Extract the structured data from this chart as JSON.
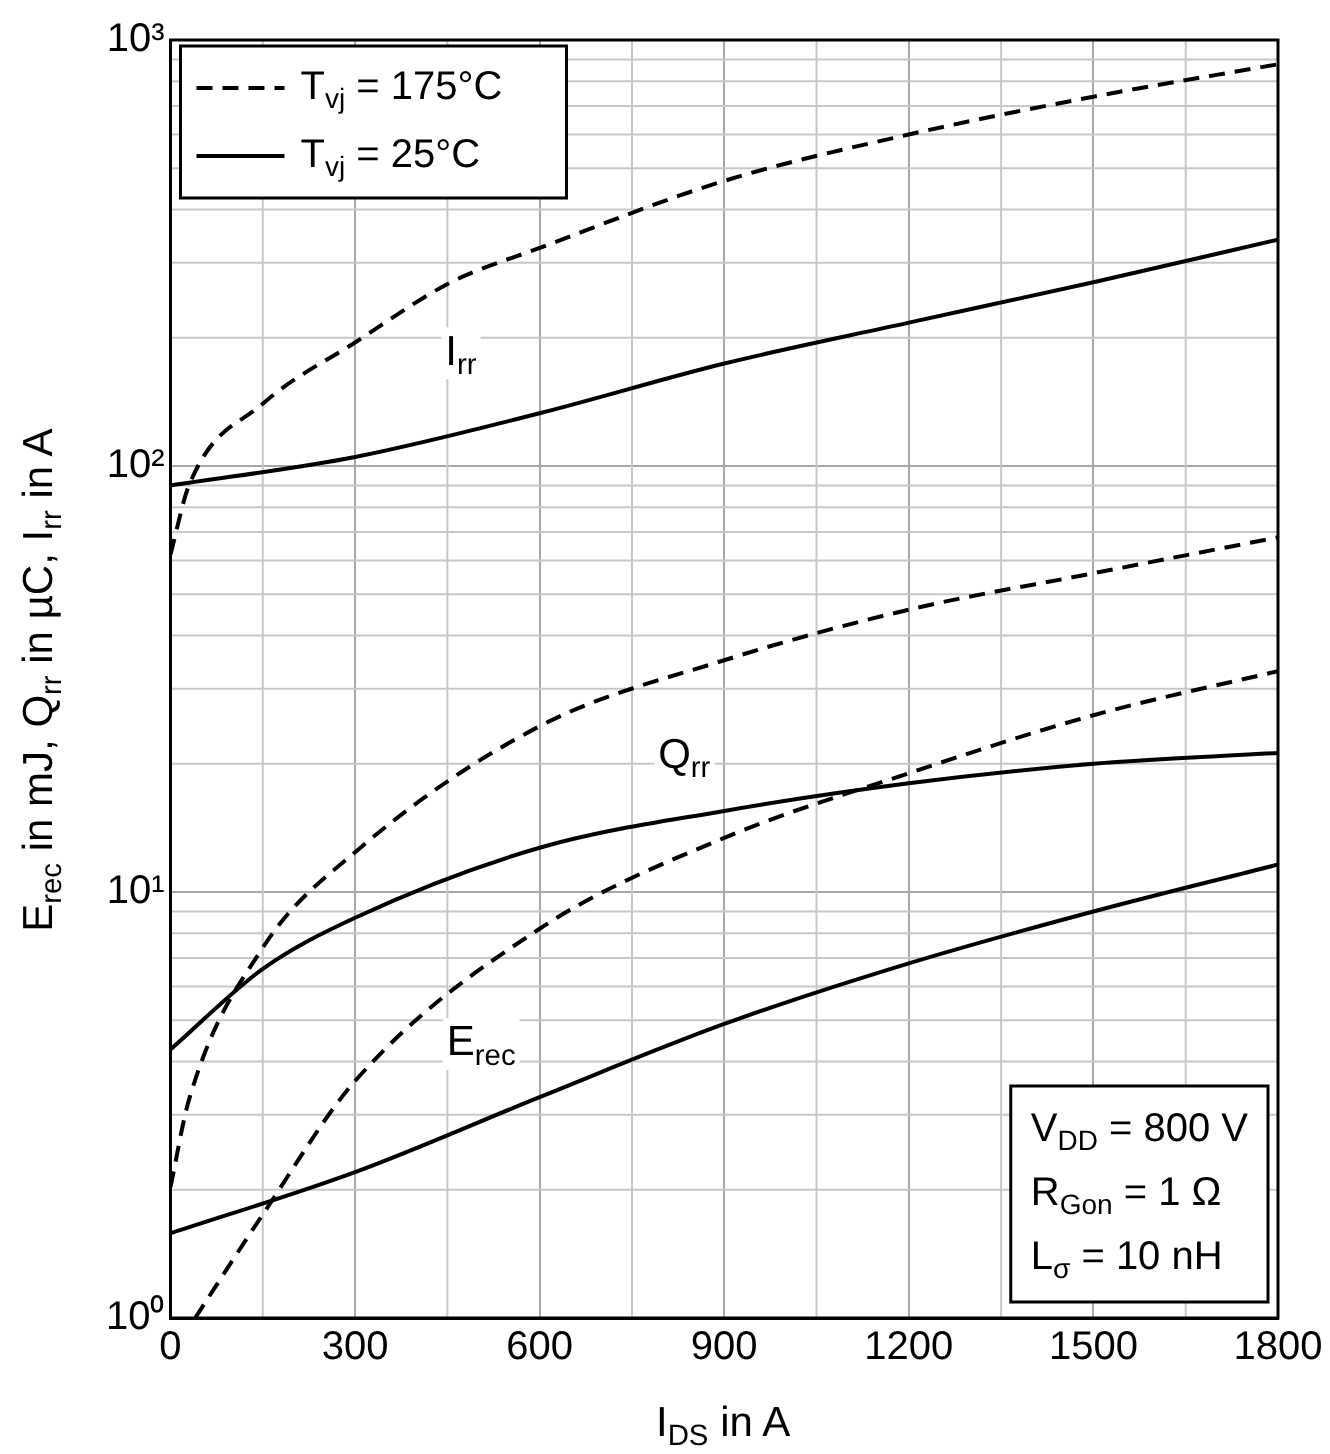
{
  "chart_data": {
    "type": "line",
    "xlabel": "I$_{DS}$ in A",
    "ylabel": "E$_{rec}$ in mJ, Q$_{rr}$ in µC, I$_{rr}$ in A",
    "series": [
      {
        "name": "T$_{vj}$ = 175°C",
        "color": "#000000",
        "line_style": "dashed",
        "x": [
          0,
          30,
          150,
          300,
          456,
          600,
          900,
          1200,
          1500,
          1800
        ],
        "values": [
          62,
          90,
          140,
          195,
          270,
          325,
          467,
          600,
          736,
          877
        ]
      },
      {
        "name": "T$_{vj}$ = 25°C",
        "color": "#000000",
        "line_style": "solid",
        "x": [
          0,
          300,
          600,
          900,
          1200,
          1500,
          1800
        ],
        "values": [
          90,
          105,
          133,
          174,
          217,
          270,
          340
        ]
      },
      {
        "color": "#000000",
        "line_style": "dashed",
        "x": [
          0,
          30,
          150,
          300,
          600,
          900,
          1200,
          1500,
          1800
        ],
        "values": [
          2.03,
          3.25,
          7.4,
          12.4,
          24.5,
          35,
          46,
          56,
          68
        ]
      },
      {
        "color": "#000000",
        "line_style": "solid",
        "x": [
          0,
          150,
          300,
          600,
          900,
          1200,
          1500,
          1800
        ],
        "values": [
          4.27,
          6.6,
          8.7,
          12.7,
          15.5,
          18,
          20,
          21.2
        ]
      },
      {
        "color": "#000000",
        "line_style": "dashed",
        "x": [
          40,
          150,
          300,
          600,
          900,
          1200,
          1500,
          1800
        ],
        "values": [
          1.0,
          1.75,
          3.6,
          8.2,
          13.4,
          19,
          26,
          33
        ]
      },
      {
        "color": "#000000",
        "line_style": "solid",
        "x": [
          0,
          300,
          600,
          900,
          1200,
          1500,
          1800
        ],
        "values": [
          1.58,
          2.2,
          3.3,
          4.9,
          6.8,
          9.0,
          11.6
        ]
      }
    ],
    "log": "y",
    "grid": true,
    "legend": "top left",
    "marker": "none",
    "xlim": [
      0,
      1800
    ],
    "xticks": [
      0,
      300,
      600,
      900,
      1200,
      1500,
      1800
    ],
    "ylim": [
      1,
      1000
    ],
    "yticks": [
      {
        "value": 1,
        "label": "10⁰"
      },
      {
        "value": 10,
        "label": "10¹"
      },
      {
        "value": 100,
        "label": "10²"
      },
      {
        "value": 1000,
        "label": "10³"
      }
    ],
    "annotations": [
      {
        "text": "I$_{rr}$",
        "x": 472,
        "y": 184
      },
      {
        "text": "Q$_{rr}$",
        "x": 835,
        "y": 20.8
      },
      {
        "text": "E$_{rec}$",
        "x": 505,
        "y": 4.4
      },
      "V$_{DD}$ = 800 V",
      "R$_{Gon}$ = 1 Ω",
      "L$_{σ}$ = 10 nH"
    ]
  }
}
